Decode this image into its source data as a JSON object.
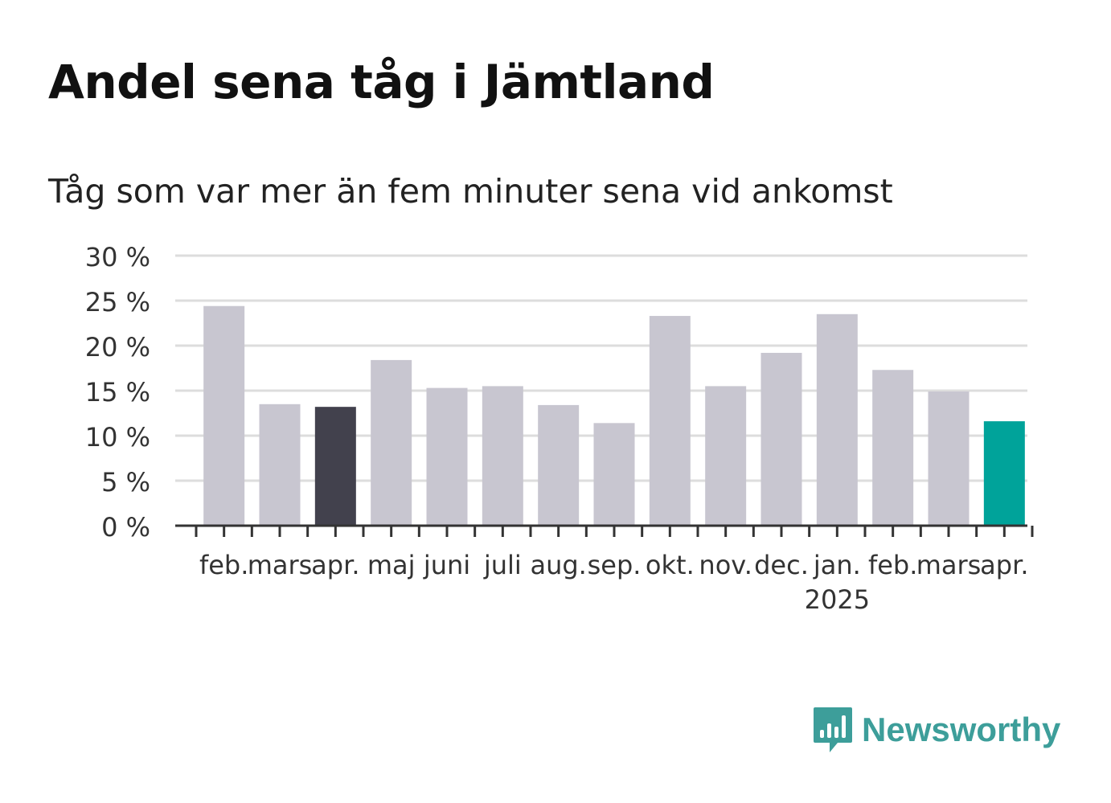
{
  "header": {
    "title": "Andel sena tåg i Jämtland",
    "subtitle": "Tåg som var mer än fem minuter sena vid ankomst"
  },
  "brand": {
    "name": "Newsworthy",
    "icon": "bar-chart-logo-icon",
    "color": "#3d9e9a"
  },
  "chart_data": {
    "type": "bar",
    "categories": [
      "feb.",
      "mars",
      "apr.",
      "maj",
      "juni",
      "juli",
      "aug.",
      "sep.",
      "okt.",
      "nov.",
      "dec.",
      "jan.",
      "feb.",
      "mars",
      "apr."
    ],
    "category_sublabels": [
      "",
      "",
      "",
      "",
      "",
      "",
      "",
      "",
      "",
      "",
      "",
      "2025",
      "",
      "",
      ""
    ],
    "values": [
      24.4,
      13.5,
      13.2,
      18.4,
      15.3,
      15.5,
      13.4,
      11.4,
      23.3,
      15.5,
      19.2,
      23.5,
      17.3,
      14.9,
      11.6
    ],
    "ylim": [
      0,
      30
    ],
    "yticks": [
      0,
      5,
      10,
      15,
      20,
      25,
      30
    ],
    "ytick_labels": [
      "0 %",
      "5 %",
      "10 %",
      "15 %",
      "20 %",
      "25 %",
      "30 %"
    ],
    "grid": true,
    "colors": {
      "default": "#c8c6d0",
      "highlight_previous": "#42414d",
      "highlight_current": "#00a39a",
      "grid": "#dddddd",
      "axis": "#333333"
    },
    "highlight_indices": {
      "2": "highlight_previous",
      "14": "highlight_current"
    }
  }
}
